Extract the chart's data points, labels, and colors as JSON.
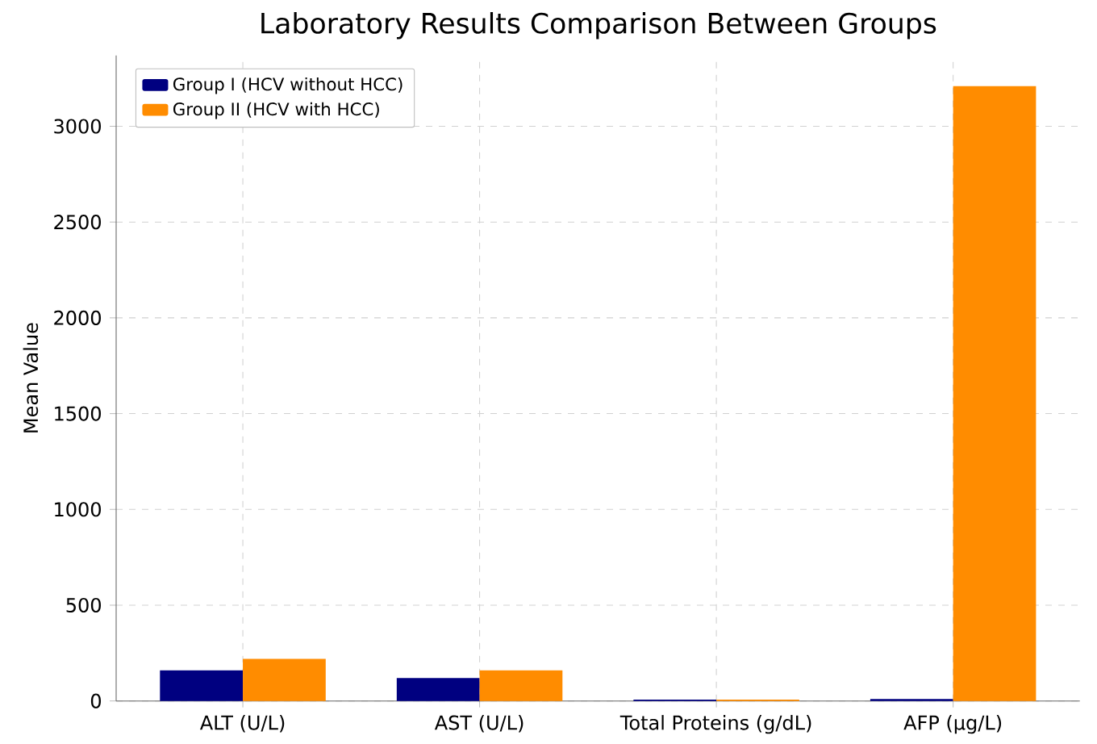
{
  "chart_data": {
    "type": "bar",
    "title": "Laboratory Results Comparison Between Groups",
    "ylabel": "Mean Value",
    "categories": [
      "ALT (U/L)",
      "AST (U/L)",
      "Total Proteins (g/dL)",
      "AFP (µg/L)"
    ],
    "series": [
      {
        "name": "Group I (HCV without HCC)",
        "color": "#000080",
        "values": [
          160,
          120,
          7,
          10
        ]
      },
      {
        "name": "Group II (HCV with HCC)",
        "color": "#ff8c00",
        "values": [
          220,
          160,
          7,
          3210
        ]
      }
    ],
    "ylim": [
      0,
      3370
    ],
    "yticks": [
      0,
      500,
      1000,
      1500,
      2000,
      2500,
      3000
    ],
    "grid": true,
    "legend": "top left"
  }
}
